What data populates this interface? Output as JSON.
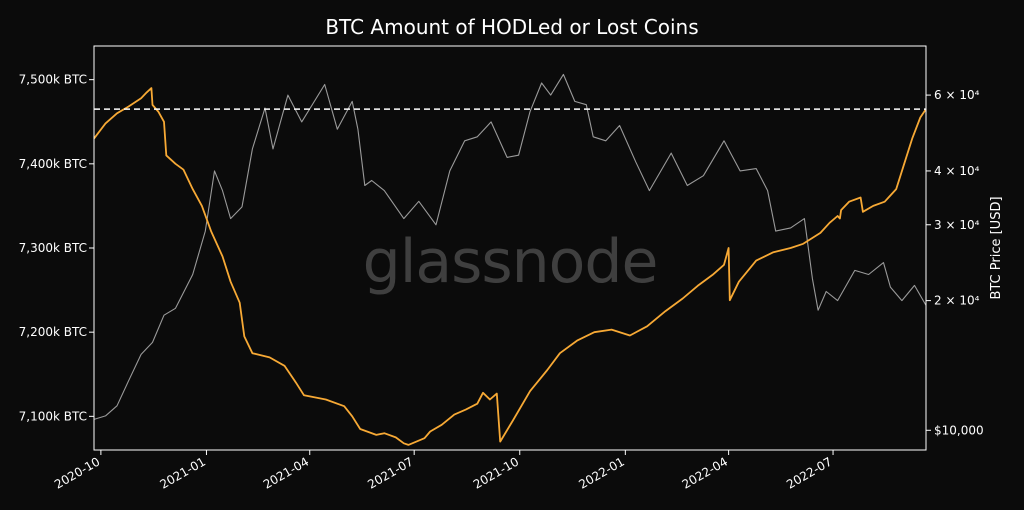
{
  "chart_data": {
    "type": "line",
    "title": "BTC Amount of HODLed or Lost Coins",
    "watermark": "glassnode",
    "y_right_label": "BTC Price [USD]",
    "x_ticks": [
      "2020-10",
      "2021-01",
      "2021-04",
      "2021-07",
      "2021-10",
      "2022-01",
      "2022-04",
      "2022-07"
    ],
    "y_left_ticks": [
      {
        "value": 7100,
        "label": "7,100k BTC"
      },
      {
        "value": 7200,
        "label": "7,200k BTC"
      },
      {
        "value": 7300,
        "label": "7,300k BTC"
      },
      {
        "value": 7400,
        "label": "7,400k BTC"
      },
      {
        "value": 7500,
        "label": "7,500k BTC"
      }
    ],
    "y_right_ticks": [
      {
        "value": 10000,
        "label": "$10,000"
      },
      {
        "value": 20000,
        "label": "2 × 10⁴"
      },
      {
        "value": 30000,
        "label": "3 × 10⁴"
      },
      {
        "value": 40000,
        "label": "4 × 10⁴"
      },
      {
        "value": 60000,
        "label": "6 × 10⁴"
      }
    ],
    "y_left_range": [
      7060,
      7540
    ],
    "y_right_range": [
      9000,
      78000
    ],
    "y_right_scale": "log",
    "x_range": [
      "2020-09-25",
      "2022-09-20"
    ],
    "reference_line": {
      "value": 7465,
      "style": "dashed",
      "color": "#ffffff"
    },
    "colors": {
      "hodl": "#f7a935",
      "price": "#9a9a9a",
      "background": "#0b0b0b",
      "axes": "#ffffff"
    },
    "series": [
      {
        "axis": "left",
        "points": [
          [
            "2020-09-25",
            7430
          ],
          [
            "2020-10-05",
            7448
          ],
          [
            "2020-10-15",
            7460
          ],
          [
            "2020-10-25",
            7468
          ],
          [
            "2020-11-05",
            7478
          ],
          [
            "2020-11-10",
            7485
          ],
          [
            "2020-11-14",
            7490
          ],
          [
            "2020-11-15",
            7470
          ],
          [
            "2020-11-20",
            7462
          ],
          [
            "2020-11-25",
            7450
          ],
          [
            "2020-11-27",
            7410
          ],
          [
            "2020-12-05",
            7400
          ],
          [
            "2020-12-12",
            7393
          ],
          [
            "2020-12-20",
            7370
          ],
          [
            "2020-12-28",
            7350
          ],
          [
            "2021-01-05",
            7320
          ],
          [
            "2021-01-15",
            7290
          ],
          [
            "2021-01-22",
            7260
          ],
          [
            "2021-01-30",
            7235
          ],
          [
            "2021-02-03",
            7195
          ],
          [
            "2021-02-10",
            7175
          ],
          [
            "2021-02-25",
            7170
          ],
          [
            "2021-03-10",
            7160
          ],
          [
            "2021-03-20",
            7140
          ],
          [
            "2021-03-27",
            7125
          ],
          [
            "2021-04-15",
            7120
          ],
          [
            "2021-05-01",
            7112
          ],
          [
            "2021-05-08",
            7100
          ],
          [
            "2021-05-15",
            7085
          ],
          [
            "2021-05-29",
            7078
          ],
          [
            "2021-06-05",
            7080
          ],
          [
            "2021-06-15",
            7075
          ],
          [
            "2021-06-22",
            7068
          ],
          [
            "2021-06-26",
            7066
          ],
          [
            "2021-07-10",
            7074
          ],
          [
            "2021-07-15",
            7082
          ],
          [
            "2021-07-25",
            7090
          ],
          [
            "2021-08-05",
            7102
          ],
          [
            "2021-08-15",
            7108
          ],
          [
            "2021-08-25",
            7115
          ],
          [
            "2021-08-30",
            7128
          ],
          [
            "2021-09-05",
            7120
          ],
          [
            "2021-09-11",
            7127
          ],
          [
            "2021-09-14",
            7070
          ],
          [
            "2021-09-25",
            7095
          ],
          [
            "2021-10-10",
            7130
          ],
          [
            "2021-10-25",
            7155
          ],
          [
            "2021-11-05",
            7175
          ],
          [
            "2021-11-20",
            7190
          ],
          [
            "2021-12-05",
            7200
          ],
          [
            "2021-12-20",
            7203
          ],
          [
            "2022-01-05",
            7196
          ],
          [
            "2022-01-20",
            7207
          ],
          [
            "2022-02-05",
            7225
          ],
          [
            "2022-02-20",
            7240
          ],
          [
            "2022-03-05",
            7255
          ],
          [
            "2022-03-18",
            7268
          ],
          [
            "2022-03-28",
            7280
          ],
          [
            "2022-04-01",
            7300
          ],
          [
            "2022-04-02",
            7238
          ],
          [
            "2022-04-10",
            7260
          ],
          [
            "2022-04-25",
            7285
          ],
          [
            "2022-05-10",
            7295
          ],
          [
            "2022-05-25",
            7300
          ],
          [
            "2022-06-05",
            7305
          ],
          [
            "2022-06-20",
            7318
          ],
          [
            "2022-06-28",
            7330
          ],
          [
            "2022-07-05",
            7338
          ],
          [
            "2022-07-07",
            7335
          ],
          [
            "2022-07-08",
            7345
          ],
          [
            "2022-07-15",
            7355
          ],
          [
            "2022-07-25",
            7360
          ],
          [
            "2022-07-27",
            7343
          ],
          [
            "2022-08-05",
            7350
          ],
          [
            "2022-08-15",
            7355
          ],
          [
            "2022-08-25",
            7370
          ],
          [
            "2022-09-01",
            7400
          ],
          [
            "2022-09-08",
            7430
          ],
          [
            "2022-09-15",
            7455
          ],
          [
            "2022-09-20",
            7465
          ]
        ]
      },
      {
        "axis": "right",
        "points": [
          [
            "2020-09-25",
            10600
          ],
          [
            "2020-10-05",
            10800
          ],
          [
            "2020-10-15",
            11400
          ],
          [
            "2020-10-25",
            13000
          ],
          [
            "2020-11-05",
            15000
          ],
          [
            "2020-11-15",
            16000
          ],
          [
            "2020-11-25",
            18500
          ],
          [
            "2020-12-05",
            19200
          ],
          [
            "2020-12-20",
            23000
          ],
          [
            "2020-12-31",
            29000
          ],
          [
            "2021-01-08",
            40000
          ],
          [
            "2021-01-15",
            36000
          ],
          [
            "2021-01-22",
            31000
          ],
          [
            "2021-02-01",
            33000
          ],
          [
            "2021-02-10",
            45000
          ],
          [
            "2021-02-21",
            56000
          ],
          [
            "2021-02-28",
            45000
          ],
          [
            "2021-03-13",
            60000
          ],
          [
            "2021-03-25",
            52000
          ],
          [
            "2021-04-14",
            63500
          ],
          [
            "2021-04-25",
            50000
          ],
          [
            "2021-05-08",
            58000
          ],
          [
            "2021-05-13",
            50000
          ],
          [
            "2021-05-19",
            37000
          ],
          [
            "2021-05-25",
            38000
          ],
          [
            "2021-06-05",
            36000
          ],
          [
            "2021-06-22",
            31000
          ],
          [
            "2021-07-05",
            34000
          ],
          [
            "2021-07-20",
            30000
          ],
          [
            "2021-08-01",
            40000
          ],
          [
            "2021-08-14",
            47000
          ],
          [
            "2021-08-25",
            48000
          ],
          [
            "2021-09-06",
            52000
          ],
          [
            "2021-09-20",
            43000
          ],
          [
            "2021-09-30",
            43500
          ],
          [
            "2021-10-10",
            55000
          ],
          [
            "2021-10-20",
            64000
          ],
          [
            "2021-10-28",
            60000
          ],
          [
            "2021-11-08",
            67000
          ],
          [
            "2021-11-18",
            58000
          ],
          [
            "2021-11-28",
            57000
          ],
          [
            "2021-12-04",
            48000
          ],
          [
            "2021-12-15",
            47000
          ],
          [
            "2021-12-27",
            51000
          ],
          [
            "2022-01-10",
            42000
          ],
          [
            "2022-01-22",
            36000
          ],
          [
            "2022-02-10",
            44000
          ],
          [
            "2022-02-24",
            37000
          ],
          [
            "2022-03-10",
            39000
          ],
          [
            "2022-03-28",
            47000
          ],
          [
            "2022-04-11",
            40000
          ],
          [
            "2022-04-25",
            40500
          ],
          [
            "2022-05-05",
            36000
          ],
          [
            "2022-05-12",
            29000
          ],
          [
            "2022-05-25",
            29500
          ],
          [
            "2022-06-06",
            31000
          ],
          [
            "2022-06-13",
            22500
          ],
          [
            "2022-06-18",
            19000
          ],
          [
            "2022-06-25",
            21000
          ],
          [
            "2022-07-05",
            20000
          ],
          [
            "2022-07-20",
            23500
          ],
          [
            "2022-08-01",
            23000
          ],
          [
            "2022-08-14",
            24500
          ],
          [
            "2022-08-20",
            21500
          ],
          [
            "2022-08-30",
            20000
          ],
          [
            "2022-09-10",
            21700
          ],
          [
            "2022-09-20",
            19500
          ]
        ]
      }
    ]
  }
}
